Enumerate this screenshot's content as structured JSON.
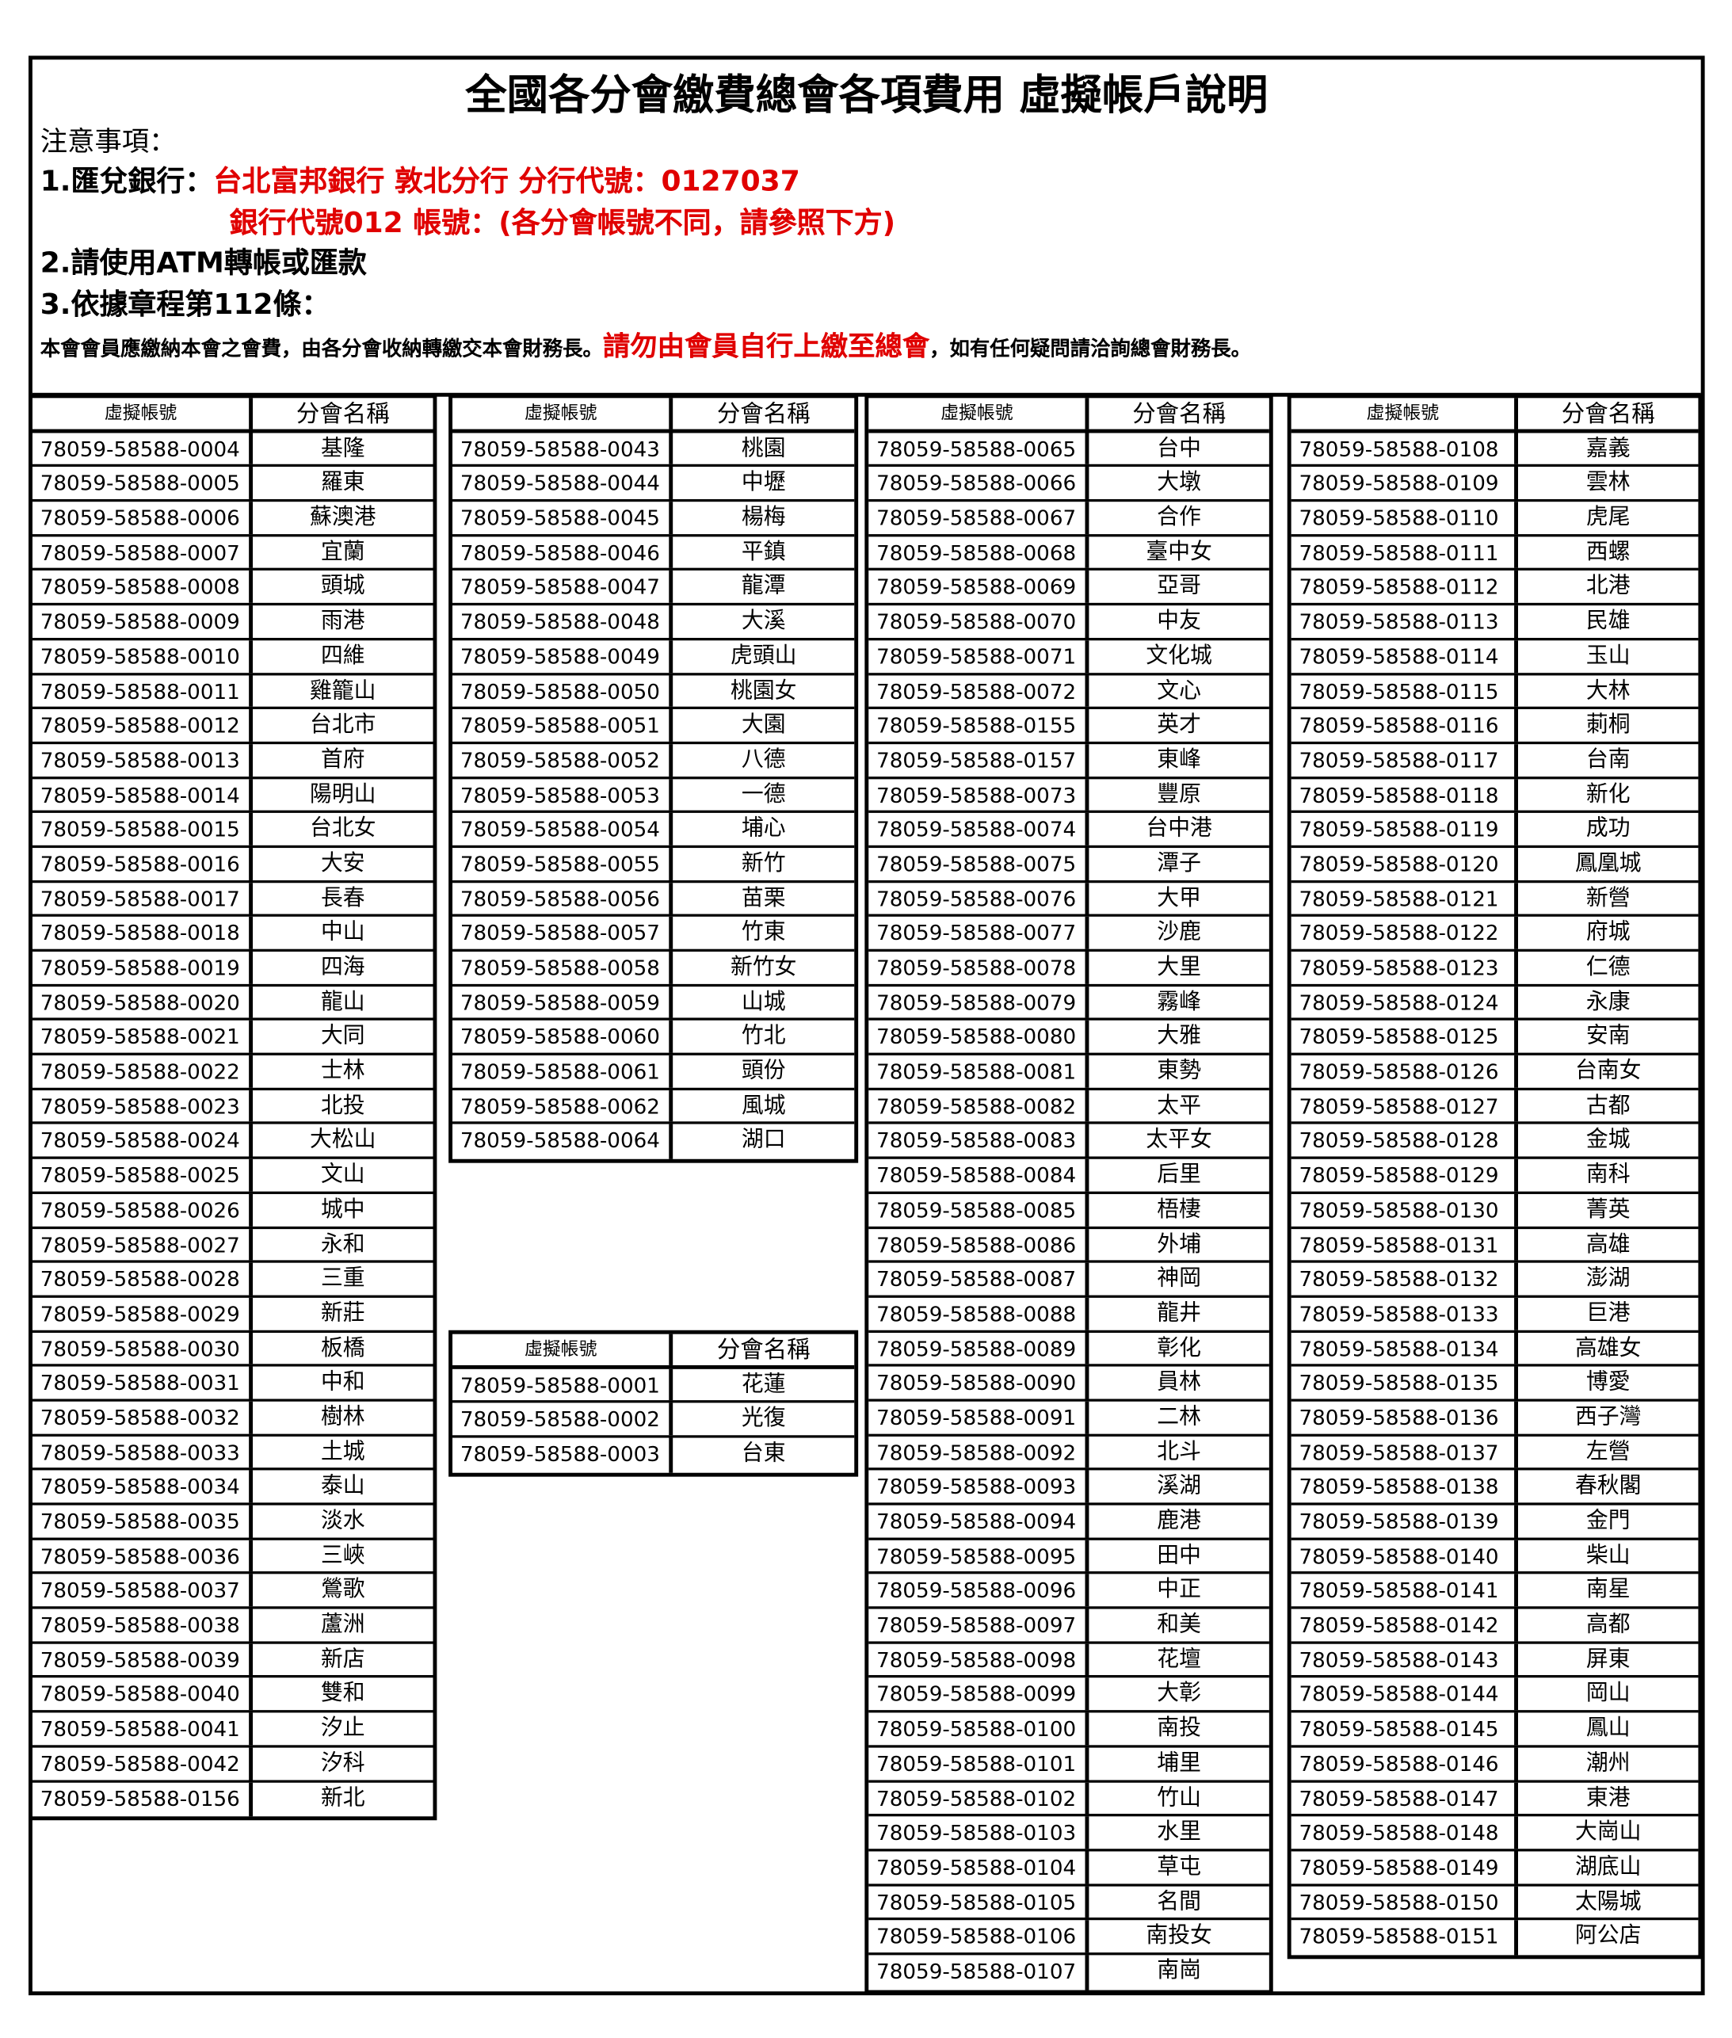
{
  "title": "全國各分會繳費總會各項費用 虛擬帳戶說明",
  "notes": {
    "heading": "注意事項：",
    "item1_label": "1.匯兌銀行：",
    "item1_bank": "台北富邦銀行 敦北分行  分行代號：0127037",
    "item1_line2": "銀行代號012 帳號：(各分會帳號不同，請參照下方)",
    "item2": "2.請使用ATM轉帳或匯款",
    "item3": "3.依據章程第112條：",
    "item3_text_a": "本會會員應繳納本會之會費，由各分會收納轉繳交本會財務長。",
    "item3_text_red": "請勿由會員自行上繳至總會",
    "item3_text_b": "，如有任何疑問請洽詢總會財務長。"
  },
  "table_headers": {
    "account": "虛擬帳號",
    "branch": "分會名稱"
  },
  "tables": [
    {
      "rows": [
        [
          "78059-58588-0004",
          "基隆"
        ],
        [
          "78059-58588-0005",
          "羅東"
        ],
        [
          "78059-58588-0006",
          "蘇澳港"
        ],
        [
          "78059-58588-0007",
          "宜蘭"
        ],
        [
          "78059-58588-0008",
          "頭城"
        ],
        [
          "78059-58588-0009",
          "雨港"
        ],
        [
          "78059-58588-0010",
          "四維"
        ],
        [
          "78059-58588-0011",
          "雞籠山"
        ],
        [
          "78059-58588-0012",
          "台北市"
        ],
        [
          "78059-58588-0013",
          "首府"
        ],
        [
          "78059-58588-0014",
          "陽明山"
        ],
        [
          "78059-58588-0015",
          "台北女"
        ],
        [
          "78059-58588-0016",
          "大安"
        ],
        [
          "78059-58588-0017",
          "長春"
        ],
        [
          "78059-58588-0018",
          "中山"
        ],
        [
          "78059-58588-0019",
          "四海"
        ],
        [
          "78059-58588-0020",
          "龍山"
        ],
        [
          "78059-58588-0021",
          "大同"
        ],
        [
          "78059-58588-0022",
          "士林"
        ],
        [
          "78059-58588-0023",
          "北投"
        ],
        [
          "78059-58588-0024",
          "大松山"
        ],
        [
          "78059-58588-0025",
          "文山"
        ],
        [
          "78059-58588-0026",
          "城中"
        ],
        [
          "78059-58588-0027",
          "永和"
        ],
        [
          "78059-58588-0028",
          "三重"
        ],
        [
          "78059-58588-0029",
          "新莊"
        ],
        [
          "78059-58588-0030",
          "板橋"
        ],
        [
          "78059-58588-0031",
          "中和"
        ],
        [
          "78059-58588-0032",
          "樹林"
        ],
        [
          "78059-58588-0033",
          "土城"
        ],
        [
          "78059-58588-0034",
          "泰山"
        ],
        [
          "78059-58588-0035",
          "淡水"
        ],
        [
          "78059-58588-0036",
          "三峽"
        ],
        [
          "78059-58588-0037",
          "鶯歌"
        ],
        [
          "78059-58588-0038",
          "蘆洲"
        ],
        [
          "78059-58588-0039",
          "新店"
        ],
        [
          "78059-58588-0040",
          "雙和"
        ],
        [
          "78059-58588-0041",
          "汐止"
        ],
        [
          "78059-58588-0042",
          "汐科"
        ],
        [
          "78059-58588-0156",
          "新北"
        ]
      ]
    },
    {
      "rows": [
        [
          "78059-58588-0043",
          "桃園"
        ],
        [
          "78059-58588-0044",
          "中壢"
        ],
        [
          "78059-58588-0045",
          "楊梅"
        ],
        [
          "78059-58588-0046",
          "平鎮"
        ],
        [
          "78059-58588-0047",
          "龍潭"
        ],
        [
          "78059-58588-0048",
          "大溪"
        ],
        [
          "78059-58588-0049",
          "虎頭山"
        ],
        [
          "78059-58588-0050",
          "桃園女"
        ],
        [
          "78059-58588-0051",
          "大園"
        ],
        [
          "78059-58588-0052",
          "八德"
        ],
        [
          "78059-58588-0053",
          "一德"
        ],
        [
          "78059-58588-0054",
          "埔心"
        ],
        [
          "78059-58588-0055",
          "新竹"
        ],
        [
          "78059-58588-0056",
          "苗栗"
        ],
        [
          "78059-58588-0057",
          "竹東"
        ],
        [
          "78059-58588-0058",
          "新竹女"
        ],
        [
          "78059-58588-0059",
          "山城"
        ],
        [
          "78059-58588-0060",
          "竹北"
        ],
        [
          "78059-58588-0061",
          "頭份"
        ],
        [
          "78059-58588-0062",
          "風城"
        ],
        [
          "78059-58588-0064",
          "湖口"
        ]
      ]
    },
    {
      "rows": [
        [
          "78059-58588-0001",
          "花蓮"
        ],
        [
          "78059-58588-0002",
          "光復"
        ],
        [
          "78059-58588-0003",
          "台東"
        ]
      ]
    },
    {
      "rows": [
        [
          "78059-58588-0065",
          "台中"
        ],
        [
          "78059-58588-0066",
          "大墩"
        ],
        [
          "78059-58588-0067",
          "合作"
        ],
        [
          "78059-58588-0068",
          "臺中女"
        ],
        [
          "78059-58588-0069",
          "亞哥"
        ],
        [
          "78059-58588-0070",
          "中友"
        ],
        [
          "78059-58588-0071",
          "文化城"
        ],
        [
          "78059-58588-0072",
          "文心"
        ],
        [
          "78059-58588-0155",
          "英才"
        ],
        [
          "78059-58588-0157",
          "東峰"
        ],
        [
          "78059-58588-0073",
          "豐原"
        ],
        [
          "78059-58588-0074",
          "台中港"
        ],
        [
          "78059-58588-0075",
          "潭子"
        ],
        [
          "78059-58588-0076",
          "大甲"
        ],
        [
          "78059-58588-0077",
          "沙鹿"
        ],
        [
          "78059-58588-0078",
          "大里"
        ],
        [
          "78059-58588-0079",
          "霧峰"
        ],
        [
          "78059-58588-0080",
          "大雅"
        ],
        [
          "78059-58588-0081",
          "東勢"
        ],
        [
          "78059-58588-0082",
          "太平"
        ],
        [
          "78059-58588-0083",
          "太平女"
        ],
        [
          "78059-58588-0084",
          "后里"
        ],
        [
          "78059-58588-0085",
          "梧棲"
        ],
        [
          "78059-58588-0086",
          "外埔"
        ],
        [
          "78059-58588-0087",
          "神岡"
        ],
        [
          "78059-58588-0088",
          "龍井"
        ],
        [
          "78059-58588-0089",
          "彰化"
        ],
        [
          "78059-58588-0090",
          "員林"
        ],
        [
          "78059-58588-0091",
          "二林"
        ],
        [
          "78059-58588-0092",
          "北斗"
        ],
        [
          "78059-58588-0093",
          "溪湖"
        ],
        [
          "78059-58588-0094",
          "鹿港"
        ],
        [
          "78059-58588-0095",
          "田中"
        ],
        [
          "78059-58588-0096",
          "中正"
        ],
        [
          "78059-58588-0097",
          "和美"
        ],
        [
          "78059-58588-0098",
          "花壇"
        ],
        [
          "78059-58588-0099",
          "大彰"
        ],
        [
          "78059-58588-0100",
          "南投"
        ],
        [
          "78059-58588-0101",
          "埔里"
        ],
        [
          "78059-58588-0102",
          "竹山"
        ],
        [
          "78059-58588-0103",
          "水里"
        ],
        [
          "78059-58588-0104",
          "草屯"
        ],
        [
          "78059-58588-0105",
          "名間"
        ],
        [
          "78059-58588-0106",
          "南投女"
        ],
        [
          "78059-58588-0107",
          "南崗"
        ]
      ]
    },
    {
      "rows": [
        [
          "78059-58588-0108",
          "嘉義"
        ],
        [
          "78059-58588-0109",
          "雲林"
        ],
        [
          "78059-58588-0110",
          "虎尾"
        ],
        [
          "78059-58588-0111",
          "西螺"
        ],
        [
          "78059-58588-0112",
          "北港"
        ],
        [
          "78059-58588-0113",
          "民雄"
        ],
        [
          "78059-58588-0114",
          "玉山"
        ],
        [
          "78059-58588-0115",
          "大林"
        ],
        [
          "78059-58588-0116",
          "莿桐"
        ],
        [
          "78059-58588-0117",
          "台南"
        ],
        [
          "78059-58588-0118",
          "新化"
        ],
        [
          "78059-58588-0119",
          "成功"
        ],
        [
          "78059-58588-0120",
          "鳳凰城"
        ],
        [
          "78059-58588-0121",
          "新營"
        ],
        [
          "78059-58588-0122",
          "府城"
        ],
        [
          "78059-58588-0123",
          "仁德"
        ],
        [
          "78059-58588-0124",
          "永康"
        ],
        [
          "78059-58588-0125",
          "安南"
        ],
        [
          "78059-58588-0126",
          "台南女"
        ],
        [
          "78059-58588-0127",
          "古都"
        ],
        [
          "78059-58588-0128",
          "金城"
        ],
        [
          "78059-58588-0129",
          "南科"
        ],
        [
          "78059-58588-0130",
          "菁英"
        ],
        [
          "78059-58588-0131",
          "高雄"
        ],
        [
          "78059-58588-0132",
          "澎湖"
        ],
        [
          "78059-58588-0133",
          "巨港"
        ],
        [
          "78059-58588-0134",
          "高雄女"
        ],
        [
          "78059-58588-0135",
          "博愛"
        ],
        [
          "78059-58588-0136",
          "西子灣"
        ],
        [
          "78059-58588-0137",
          "左營"
        ],
        [
          "78059-58588-0138",
          "春秋閣"
        ],
        [
          "78059-58588-0139",
          "金門"
        ],
        [
          "78059-58588-0140",
          "柴山"
        ],
        [
          "78059-58588-0141",
          "南星"
        ],
        [
          "78059-58588-0142",
          "高都"
        ],
        [
          "78059-58588-0143",
          "屏東"
        ],
        [
          "78059-58588-0144",
          "岡山"
        ],
        [
          "78059-58588-0145",
          "鳳山"
        ],
        [
          "78059-58588-0146",
          "潮州"
        ],
        [
          "78059-58588-0147",
          "東港"
        ],
        [
          "78059-58588-0148",
          "大崗山"
        ],
        [
          "78059-58588-0149",
          "湖底山"
        ],
        [
          "78059-58588-0150",
          "太陽城"
        ],
        [
          "78059-58588-0151",
          "阿公店"
        ]
      ]
    }
  ]
}
